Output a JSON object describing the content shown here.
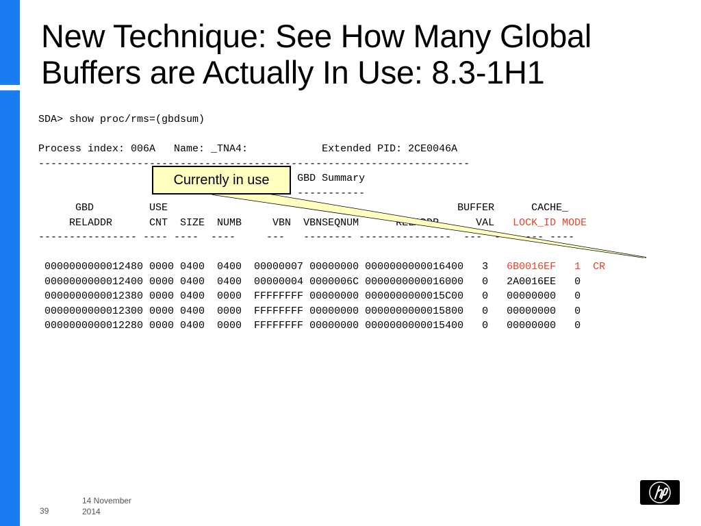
{
  "slide": {
    "title": "New Technique: See How Many Global Buffers are Actually In Use: 8.3-1H1",
    "page_number": "39",
    "date": "14 November 2014",
    "accent_color": "#1a7cf0",
    "highlight_color": "#e8422c",
    "logo": "hp-logo"
  },
  "console": {
    "command": "SDA> show proc/rms=(gbdsum)",
    "process_line": "Process index: 006A   Name: _TNA4:            Extended PID: 2CE0046A",
    "separator": "----------------------------------------------------------------------",
    "summary_title": "GBD Summary",
    "summary_underline": "-----------",
    "header1": "      GBD         USE                                               BUFFER      CACHE_",
    "header2_prefix": "     RELADDR      CNT  SIZE  NUMB     VBN  VBNSEQNUM      RELADDR      VAL   ",
    "header2_red": "LOCK_ID MODE",
    "header3": "---------------- ---- ----  ----     ---   -------- ---------------  ---  -------- ----",
    "row1_prefix": " 0000000000012480 0000 0400  0400  00000007 00000000 0000000000016400   3   ",
    "row1_red": "6B0016EF   1  CR",
    "rows": [
      " 0000000000012400 0000 0400  0400  00000004 0000006C 0000000000016000   0   2A0016EE   0",
      " 0000000000012380 0000 0400  0000  FFFFFFFF 00000000 0000000000015C00   0   00000000   0",
      " 0000000000012300 0000 0400  0000  FFFFFFFF 00000000 0000000000015800   0   00000000   0",
      " 0000000000012280 0000 0400  0000  FFFFFFFF 00000000 0000000000015400   0   00000000   0"
    ]
  },
  "callout": {
    "label": "Currently in use"
  }
}
